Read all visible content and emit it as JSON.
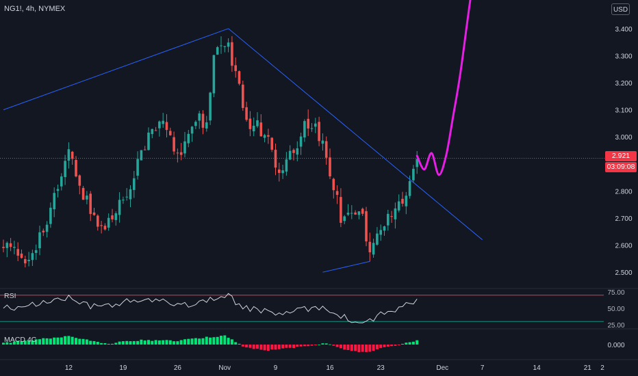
{
  "header": {
    "symbol": "NG1!, 4h, NYMEX",
    "currency": "USD"
  },
  "price": {
    "last": "2.921",
    "countdown": "03:09:08"
  },
  "panes": {
    "rsi_label": "RSI",
    "macd_label": "MACD 4C"
  },
  "colors": {
    "up": "#26a69a",
    "down": "#ef5350",
    "trendline": "#2962ff",
    "projection": "#e91ee6",
    "rsi_upper": "#f23645",
    "rsi_lower": "#089981",
    "macd_up": "#00e676",
    "macd_down": "#ff1744"
  },
  "chart_data": [
    {
      "type": "candlestick",
      "title": "NG1!, 4h, NYMEX",
      "y_ticks": [
        "3.400",
        "3.300",
        "3.200",
        "3.100",
        "3.000",
        "2.800",
        "2.700",
        "2.600",
        "2.500"
      ],
      "ylim": [
        2.45,
        3.45
      ],
      "x_ticks": [
        {
          "label": "12",
          "bar": 18
        },
        {
          "label": "19",
          "bar": 33
        },
        {
          "label": "26",
          "bar": 48
        },
        {
          "label": "Nov",
          "bar": 61
        },
        {
          "label": "9",
          "bar": 75
        },
        {
          "label": "16",
          "bar": 90
        },
        {
          "label": "23",
          "bar": 104
        },
        {
          "label": "Dec",
          "bar": 121
        },
        {
          "label": "7",
          "bar": 132
        },
        {
          "label": "14",
          "bar": 147
        },
        {
          "label": "21",
          "bar": 161
        },
        {
          "label": "2",
          "bar": 161
        }
      ],
      "candles": {
        "count": 115,
        "close_path": [
          [
            0,
            2.6
          ],
          [
            6,
            2.54
          ],
          [
            12,
            2.68
          ],
          [
            18,
            2.94
          ],
          [
            24,
            2.72
          ],
          [
            28,
            2.66
          ],
          [
            34,
            2.8
          ],
          [
            39,
            2.98
          ],
          [
            44,
            3.06
          ],
          [
            48,
            2.92
          ],
          [
            53,
            3.08
          ],
          [
            56,
            3.03
          ],
          [
            58,
            3.3
          ],
          [
            60,
            3.32
          ],
          [
            62,
            3.34
          ],
          [
            64,
            3.22
          ],
          [
            67,
            3.06
          ],
          [
            70,
            3.05
          ],
          [
            73,
            2.98
          ],
          [
            76,
            2.85
          ],
          [
            79,
            2.92
          ],
          [
            84,
            3.06
          ],
          [
            88,
            2.98
          ],
          [
            90,
            2.87
          ],
          [
            93,
            2.71
          ],
          [
            96,
            2.74
          ],
          [
            99,
            2.7
          ],
          [
            101,
            2.57
          ],
          [
            104,
            2.66
          ],
          [
            108,
            2.73
          ],
          [
            111,
            2.79
          ],
          [
            114,
            2.92
          ]
        ]
      },
      "annotations": {
        "last_price_line": 2.921,
        "trendlines": [
          {
            "from": [
              0,
              3.1
            ],
            "to": [
              62,
              3.4
            ]
          },
          {
            "from": [
              62,
              3.4
            ],
            "to": [
              132,
              2.62
            ]
          },
          {
            "from": [
              88,
              2.5
            ],
            "to": [
              101,
              2.54
            ]
          }
        ],
        "projection_path": [
          [
            114,
            2.93
          ],
          [
            116,
            2.88
          ],
          [
            118,
            2.94
          ],
          [
            120,
            2.86
          ],
          [
            122,
            2.93
          ],
          [
            124,
            3.08
          ],
          [
            126,
            3.24
          ],
          [
            130,
            3.62
          ],
          [
            134,
            3.82
          ]
        ]
      }
    },
    {
      "type": "line",
      "title": "RSI",
      "y_ticks": [
        "75.00",
        "50.00",
        "25.00"
      ],
      "ylim": [
        25,
        75
      ],
      "upper_band": 70,
      "lower_band": 30,
      "values_path": [
        [
          0,
          50
        ],
        [
          6,
          52
        ],
        [
          12,
          60
        ],
        [
          18,
          66
        ],
        [
          24,
          52
        ],
        [
          30,
          56
        ],
        [
          36,
          62
        ],
        [
          44,
          60
        ],
        [
          52,
          56
        ],
        [
          58,
          66
        ],
        [
          62,
          68
        ],
        [
          66,
          52
        ],
        [
          70,
          48
        ],
        [
          74,
          42
        ],
        [
          80,
          44
        ],
        [
          84,
          50
        ],
        [
          88,
          52
        ],
        [
          92,
          42
        ],
        [
          96,
          30
        ],
        [
          100,
          28
        ],
        [
          104,
          40
        ],
        [
          108,
          48
        ],
        [
          112,
          56
        ],
        [
          115,
          66
        ]
      ]
    },
    {
      "type": "bar",
      "title": "MACD 4C",
      "y_ticks": [
        "0.000"
      ],
      "values_path": [
        [
          0,
          0.004
        ],
        [
          8,
          0.012
        ],
        [
          18,
          0.022
        ],
        [
          28,
          0.002
        ],
        [
          38,
          0.012
        ],
        [
          48,
          0.01
        ],
        [
          55,
          0.018
        ],
        [
          61,
          0.024
        ],
        [
          64,
          0.008
        ],
        [
          66,
          -0.006
        ],
        [
          72,
          -0.016
        ],
        [
          78,
          -0.01
        ],
        [
          84,
          -0.004
        ],
        [
          88,
          0.004
        ],
        [
          92,
          -0.006
        ],
        [
          96,
          -0.018
        ],
        [
          100,
          -0.02
        ],
        [
          104,
          -0.01
        ],
        [
          108,
          -0.004
        ],
        [
          111,
          0.004
        ],
        [
          115,
          0.014
        ]
      ]
    }
  ]
}
